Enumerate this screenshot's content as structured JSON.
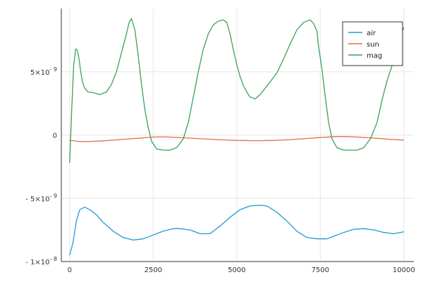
{
  "chart_data": {
    "type": "line",
    "title": "",
    "xlabel": "",
    "ylabel": "",
    "xlim": [
      -250,
      10300
    ],
    "ylim": [
      -1e-08,
      1e-08
    ],
    "grid": true,
    "legend_position": "top-right",
    "x_ticks": [
      0,
      2500,
      5000,
      7500,
      10000
    ],
    "x_tick_labels": [
      "0",
      "2500",
      "5000",
      "7500",
      "10000"
    ],
    "y_ticks": [
      -1e-08,
      -5e-09,
      0,
      5e-09
    ],
    "y_tick_labels": [
      {
        "mantissa": "- 1×10",
        "exponent": "- 8"
      },
      {
        "mantissa": "- 5×10",
        "exponent": "- 9"
      },
      {
        "mantissa": "0",
        "exponent": ""
      },
      {
        "mantissa": "5×10",
        "exponent": "- 9"
      }
    ],
    "series": [
      {
        "name": "air",
        "color": "#1f9bd8",
        "x": [
          0,
          100,
          200,
          300,
          450,
          600,
          800,
          1000,
          1300,
          1600,
          1900,
          2200,
          2500,
          2800,
          3100,
          3300,
          3600,
          3900,
          4200,
          4500,
          4800,
          5100,
          5400,
          5700,
          5900,
          6200,
          6500,
          6800,
          7100,
          7400,
          7700,
          7900,
          8200,
          8500,
          8800,
          9100,
          9400,
          9700,
          10000
        ],
        "y": [
          -9.5e-09,
          -8.5e-09,
          -6.8e-09,
          -5.9e-09,
          -5.7e-09,
          -5.9e-09,
          -6.3e-09,
          -6.9e-09,
          -7.6e-09,
          -8.1e-09,
          -8.3e-09,
          -8.2e-09,
          -7.9e-09,
          -7.6e-09,
          -7.4e-09,
          -7.4e-09,
          -7.5e-09,
          -7.8e-09,
          -7.8e-09,
          -7.2e-09,
          -6.5e-09,
          -5.9e-09,
          -5.6e-09,
          -5.55e-09,
          -5.6e-09,
          -6.1e-09,
          -6.8e-09,
          -7.6e-09,
          -8.1e-09,
          -8.2e-09,
          -8.2e-09,
          -8e-09,
          -7.7e-09,
          -7.45e-09,
          -7.4e-09,
          -7.5e-09,
          -7.7e-09,
          -7.8e-09,
          -7.65e-09
        ]
      },
      {
        "name": "sun",
        "color": "#e26f46",
        "x": [
          0,
          250,
          500,
          1000,
          1500,
          2000,
          2500,
          2800,
          3200,
          3800,
          4400,
          5000,
          5600,
          6100,
          6600,
          7100,
          7600,
          8000,
          8300,
          8700,
          9200,
          9600,
          10000
        ],
        "y": [
          -4.2e-10,
          -5e-10,
          -5.2e-10,
          -4.6e-10,
          -3.6e-10,
          -2.7e-10,
          -1.6e-10,
          -1.4e-10,
          -1.9e-10,
          -2.8e-10,
          -3.6e-10,
          -4.3e-10,
          -4.5e-10,
          -4.3e-10,
          -3.7e-10,
          -2.8e-10,
          -1.8e-10,
          -1.2e-10,
          -1.2e-10,
          -1.7e-10,
          -2.6e-10,
          -3.4e-10,
          -4e-10
        ]
      },
      {
        "name": "mag",
        "color": "#3ba15a",
        "x": [
          0,
          60,
          120,
          180,
          230,
          280,
          330,
          380,
          450,
          550,
          700,
          900,
          1100,
          1250,
          1400,
          1550,
          1700,
          1780,
          1850,
          1950,
          2050,
          2150,
          2250,
          2350,
          2450,
          2600,
          2800,
          3000,
          3200,
          3400,
          3550,
          3700,
          3850,
          4000,
          4150,
          4300,
          4450,
          4600,
          4700,
          4800,
          4900,
          5000,
          5100,
          5200,
          5300,
          5400,
          5550,
          5700,
          5850,
          6000,
          6200,
          6400,
          6600,
          6800,
          7000,
          7200,
          7300,
          7400,
          7450,
          7550,
          7650,
          7750,
          7850,
          8000,
          8200,
          8400,
          8600,
          8800,
          9000,
          9200,
          9350,
          9500,
          9650,
          9800,
          9900,
          10000
        ],
        "y": [
          -2.2e-09,
          2e-09,
          5.5e-09,
          6.8e-09,
          6.7e-09,
          6e-09,
          5e-09,
          4.2e-09,
          3.7e-09,
          3.4e-09,
          3.35e-09,
          3.2e-09,
          3.4e-09,
          4e-09,
          5e-09,
          6.5e-09,
          8e-09,
          8.9e-09,
          9.2e-09,
          8.3e-09,
          6.3e-09,
          4e-09,
          2e-09,
          6e-10,
          -5e-10,
          -1.1e-09,
          -1.2e-09,
          -1.2e-09,
          -1e-09,
          -3e-10,
          1e-09,
          3e-09,
          5e-09,
          6.8e-09,
          8e-09,
          8.7e-09,
          9e-09,
          9.1e-09,
          8.9e-09,
          8e-09,
          6.7e-09,
          5.6e-09,
          4.6e-09,
          3.9e-09,
          3.4e-09,
          3e-09,
          2.85e-09,
          3.2e-09,
          3.7e-09,
          4.2e-09,
          4.9e-09,
          6e-09,
          7.2e-09,
          8.3e-09,
          8.9e-09,
          9.1e-09,
          8.8e-09,
          8.2e-09,
          7e-09,
          5.2e-09,
          3e-09,
          1e-09,
          -3e-10,
          -1e-09,
          -1.2e-09,
          -1.2e-09,
          -1.2e-09,
          -1e-09,
          -3e-10,
          1e-09,
          2.8e-09,
          4.3e-09,
          5.5e-09,
          6.8e-09,
          7.8e-09,
          8.5e-09
        ]
      }
    ]
  }
}
